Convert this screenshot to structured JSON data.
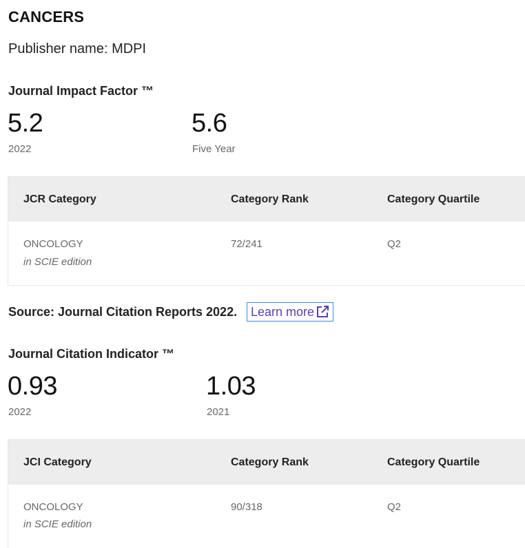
{
  "journal": {
    "title": "CANCERS",
    "publisher": "Publisher name: MDPI"
  },
  "jif": {
    "heading": "Journal Impact Factor ™",
    "value_1": "5.2",
    "label_1": "2022",
    "value_2": "5.6",
    "label_2": "Five Year",
    "table": {
      "headers": [
        "JCR Category",
        "Category Rank",
        "Category Quartile"
      ],
      "rows": [
        {
          "category": "ONCOLOGY",
          "edition": "in SCIE edition",
          "rank": "72/241",
          "quartile": "Q2"
        }
      ]
    }
  },
  "source": {
    "text": "Source: Journal Citation Reports  2022.",
    "link_label": "Learn more",
    "link_icon": "external-link-icon",
    "link_color": "#5a3fb0"
  },
  "jci": {
    "heading": "Journal Citation Indicator ™",
    "value_1": "0.93",
    "label_1": "2022",
    "value_2": "1.03",
    "label_2": "2021",
    "table": {
      "headers": [
        "JCI Category",
        "Category Rank",
        "Category Quartile"
      ],
      "rows": [
        {
          "category": "ONCOLOGY",
          "edition": "in SCIE edition",
          "rank": "90/318",
          "quartile": "Q2"
        }
      ]
    }
  }
}
